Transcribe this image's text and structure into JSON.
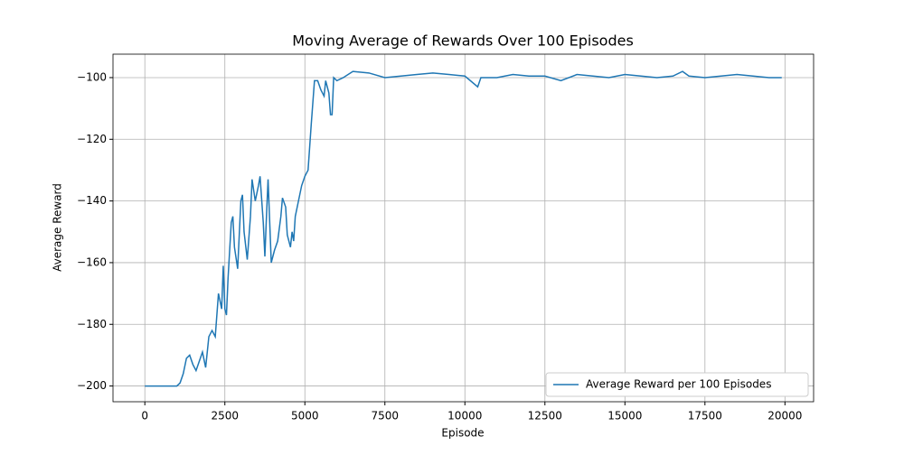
{
  "chart_data": {
    "type": "line",
    "title": "Moving Average of Rewards Over 100 Episodes",
    "x_label": "Episode",
    "y_label": "Average Reward",
    "x": [
      0,
      500,
      1000,
      1100,
      1200,
      1300,
      1400,
      1500,
      1600,
      1700,
      1800,
      1900,
      2000,
      2100,
      2200,
      2300,
      2400,
      2450,
      2500,
      2550,
      2600,
      2700,
      2750,
      2800,
      2900,
      3000,
      3050,
      3100,
      3200,
      3300,
      3350,
      3450,
      3550,
      3600,
      3700,
      3750,
      3800,
      3850,
      3950,
      4050,
      4150,
      4250,
      4300,
      4400,
      4450,
      4550,
      4600,
      4650,
      4700,
      4800,
      4900,
      5000,
      5100,
      5200,
      5300,
      5400,
      5500,
      5600,
      5650,
      5750,
      5800,
      5850,
      5900,
      6000,
      6200,
      6500,
      7000,
      7500,
      8000,
      8500,
      9000,
      9500,
      10000,
      10400,
      10500,
      11000,
      11500,
      12000,
      12500,
      13000,
      13500,
      14000,
      14500,
      15000,
      15500,
      16000,
      16500,
      16800,
      17000,
      17500,
      18000,
      18500,
      19000,
      19500,
      19900
    ],
    "series": [
      {
        "name": "Average Reward per 100 Episodes",
        "color": "#1f77b4",
        "values": [
          -200,
          -200,
          -200,
          -199,
          -196,
          -191,
          -190,
          -193,
          -195,
          -192,
          -189,
          -194,
          -184,
          -182,
          -184,
          -170,
          -175,
          -161,
          -175,
          -177,
          -165,
          -147,
          -145,
          -155,
          -162,
          -140,
          -138,
          -150,
          -159,
          -145,
          -133,
          -140,
          -135,
          -132,
          -147,
          -158,
          -145,
          -133,
          -160,
          -156,
          -153,
          -145,
          -139,
          -142,
          -151,
          -155,
          -150,
          -153,
          -145,
          -140,
          -135,
          -132,
          -130,
          -115,
          -101,
          -101,
          -104,
          -106,
          -101,
          -105,
          -112,
          -112,
          -100,
          -101,
          -100,
          -98,
          -98.5,
          -100,
          -99.5,
          -99,
          -98.5,
          -99,
          -99.5,
          -103,
          -100,
          -100,
          -99,
          -99.5,
          -99.5,
          -101,
          -99,
          -99.5,
          -100,
          -99,
          -99.5,
          -100,
          -99.5,
          -98,
          -99.5,
          -100,
          -99.5,
          -99,
          -99.5,
          -100,
          -100
        ]
      }
    ],
    "xlim": [
      -995,
      20895
    ],
    "ylim": [
      -205.1,
      -92.4
    ],
    "xticks": [
      0,
      2500,
      5000,
      7500,
      10000,
      12500,
      15000,
      17500,
      20000
    ],
    "yticks": [
      {
        "value": -200,
        "label": "−200"
      },
      {
        "value": -180,
        "label": "−180"
      },
      {
        "value": -160,
        "label": "−160"
      },
      {
        "value": -140,
        "label": "−140"
      },
      {
        "value": -120,
        "label": "−120"
      },
      {
        "value": -100,
        "label": "−100"
      }
    ],
    "grid": true,
    "legend": "lower right"
  }
}
